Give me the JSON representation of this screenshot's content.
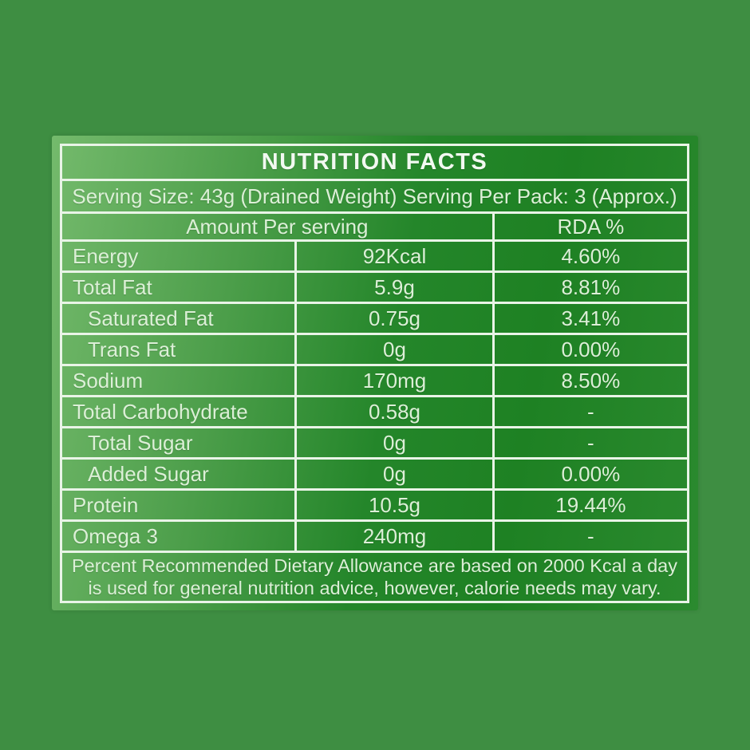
{
  "label": {
    "title": "NUTRITION FACTS",
    "serving_line": "Serving Size: 43g (Drained Weight) Serving Per Pack: 3 (Approx.)",
    "amount_header": "Amount Per serving",
    "rda_header": "RDA %",
    "rows": [
      {
        "name": "Energy",
        "amount": "92Kcal",
        "rda": "4.60%"
      },
      {
        "name": "Total Fat",
        "amount": "5.9g",
        "rda": "8.81%"
      },
      {
        "name": "Saturated Fat",
        "amount": "0.75g",
        "rda": "3.41%"
      },
      {
        "name": "Trans Fat",
        "amount": "0g",
        "rda": "0.00%"
      },
      {
        "name": "Sodium",
        "amount": "170mg",
        "rda": "8.50%"
      },
      {
        "name": "Total Carbohydrate",
        "amount": "0.58g",
        "rda": "-"
      },
      {
        "name": "Total Sugar",
        "amount": "0g",
        "rda": "-"
      },
      {
        "name": "Added Sugar",
        "amount": "0g",
        "rda": "0.00%"
      },
      {
        "name": "Protein",
        "amount": "10.5g",
        "rda": "19.44%"
      },
      {
        "name": "Omega 3",
        "amount": "240mg",
        "rda": "-"
      }
    ],
    "footnote": {
      "line1": "Percent Recommended Dietary Allowance are based on 2000 Kcal a day",
      "line2": "is used for general nutrition advice, however, calorie needs may vary."
    },
    "colors": {
      "background_green": "#3E8E42",
      "panel_light_green": "#74BA6C",
      "panel_dark_green": "#1E8123",
      "border_line": "#E9F4E7",
      "body_text": "#DCEFD7",
      "title_text": "#F2F9F1"
    }
  }
}
